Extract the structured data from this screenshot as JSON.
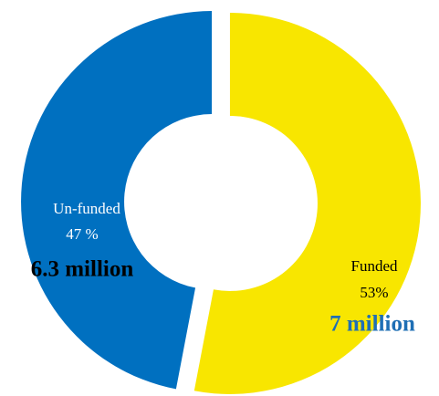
{
  "chart_data": {
    "type": "pie",
    "donut": true,
    "categories": [
      "Funded",
      "Un-funded"
    ],
    "values": [
      53,
      47
    ],
    "value_labels": [
      "53%",
      "47 %"
    ],
    "annotations": [
      "7 million",
      "6.3 million"
    ],
    "colors": [
      "#f8e600",
      "#0070c0"
    ]
  }
}
